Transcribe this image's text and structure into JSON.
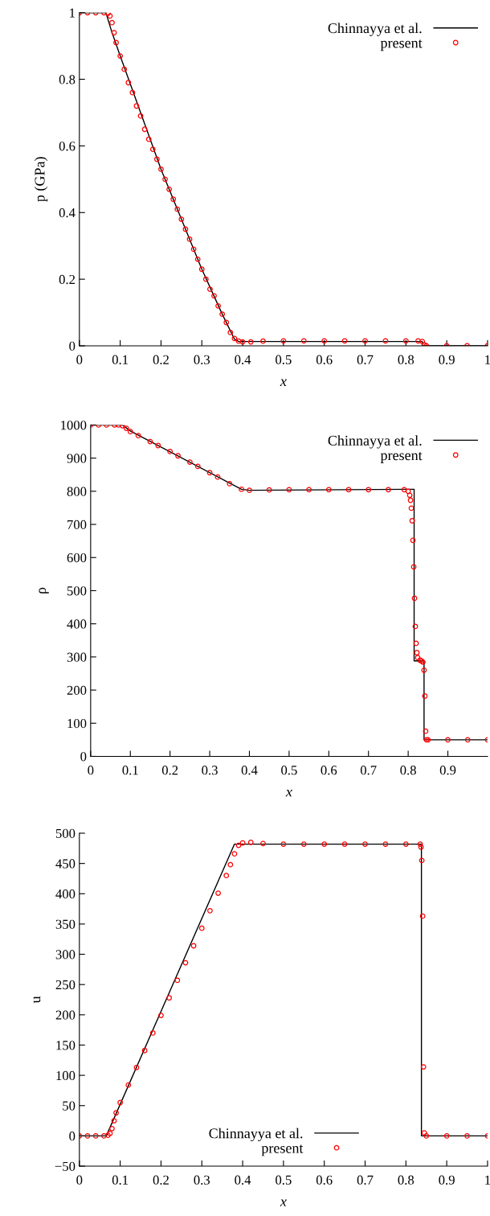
{
  "chart_data": [
    {
      "type": "line",
      "xlabel": "x",
      "ylabel": "p (GPa)",
      "xlim": [
        0,
        1
      ],
      "ylim": [
        0,
        1
      ],
      "xticks": [
        0,
        0.1,
        0.2,
        0.3,
        0.4,
        0.5,
        0.6,
        0.7,
        0.8,
        0.9,
        1
      ],
      "yticks": [
        0,
        0.2,
        0.4,
        0.6,
        0.8,
        1
      ],
      "legend": "top right",
      "grid": false,
      "series": [
        {
          "name": "Chinnayya et al.",
          "type": "line",
          "color": "#000000",
          "line_style": "solid",
          "x": [
            0,
            0.065,
            0.08,
            0.1,
            0.15,
            0.2,
            0.25,
            0.3,
            0.35,
            0.38,
            0.39,
            0.84,
            0.84,
            1
          ],
          "values": [
            1,
            1,
            0.94,
            0.87,
            0.7,
            0.53,
            0.38,
            0.23,
            0.095,
            0.02,
            0.013,
            0.013,
            0,
            0
          ]
        },
        {
          "name": "present",
          "type": "scatter",
          "color": "#ff0000",
          "marker": "circle",
          "x": [
            0,
            0.02,
            0.04,
            0.06,
            0.07,
            0.075,
            0.08,
            0.085,
            0.09,
            0.1,
            0.11,
            0.12,
            0.13,
            0.14,
            0.15,
            0.16,
            0.17,
            0.18,
            0.19,
            0.2,
            0.21,
            0.22,
            0.23,
            0.24,
            0.25,
            0.26,
            0.27,
            0.28,
            0.29,
            0.3,
            0.31,
            0.32,
            0.33,
            0.34,
            0.35,
            0.36,
            0.37,
            0.38,
            0.39,
            0.4,
            0.42,
            0.45,
            0.5,
            0.55,
            0.6,
            0.65,
            0.7,
            0.75,
            0.8,
            0.83,
            0.84,
            0.845,
            0.85,
            0.9,
            0.95,
            1
          ],
          "values": [
            1,
            1,
            1,
            1,
            0.998,
            0.99,
            0.97,
            0.94,
            0.91,
            0.87,
            0.83,
            0.79,
            0.76,
            0.72,
            0.69,
            0.65,
            0.62,
            0.59,
            0.56,
            0.53,
            0.5,
            0.47,
            0.44,
            0.41,
            0.38,
            0.35,
            0.32,
            0.29,
            0.26,
            0.23,
            0.2,
            0.17,
            0.15,
            0.12,
            0.095,
            0.07,
            0.04,
            0.022,
            0.014,
            0.012,
            0.012,
            0.014,
            0.015,
            0.015,
            0.015,
            0.015,
            0.015,
            0.015,
            0.015,
            0.015,
            0.013,
            0.003,
            0,
            0,
            0,
            0
          ]
        }
      ]
    },
    {
      "type": "line",
      "xlabel": "x",
      "ylabel": "ρ",
      "xlim": [
        0,
        1
      ],
      "ylim": [
        0,
        1000
      ],
      "xticks": [
        0,
        0.1,
        0.2,
        0.3,
        0.4,
        0.5,
        0.6,
        0.7,
        0.8,
        0.9
      ],
      "yticks": [
        0,
        100,
        200,
        300,
        400,
        500,
        600,
        700,
        800,
        900,
        1000
      ],
      "legend": "top right",
      "grid": false,
      "series": [
        {
          "name": "Chinnayya et al.",
          "type": "line",
          "color": "#000000",
          "line_style": "solid",
          "x": [
            0,
            0.08,
            0.1,
            0.38,
            0.4,
            0.815,
            0.815,
            0.84,
            0.84,
            1
          ],
          "values": [
            1000,
            1000,
            982,
            806,
            803,
            806,
            288,
            288,
            50,
            50
          ]
        },
        {
          "name": "present",
          "type": "scatter",
          "color": "#ff0000",
          "marker": "circle",
          "x": [
            0,
            0.02,
            0.04,
            0.06,
            0.07,
            0.08,
            0.09,
            0.1,
            0.12,
            0.15,
            0.17,
            0.2,
            0.22,
            0.25,
            0.27,
            0.3,
            0.32,
            0.35,
            0.38,
            0.4,
            0.45,
            0.5,
            0.55,
            0.6,
            0.65,
            0.7,
            0.75,
            0.79,
            0.8,
            0.804,
            0.806,
            0.808,
            0.81,
            0.812,
            0.814,
            0.816,
            0.818,
            0.82,
            0.822,
            0.824,
            0.83,
            0.834,
            0.837,
            0.84,
            0.842,
            0.844,
            0.846,
            0.85,
            0.9,
            0.95,
            1
          ],
          "values": [
            1000,
            1000,
            1000,
            1000,
            1000,
            998,
            990,
            980,
            968,
            950,
            938,
            920,
            907,
            888,
            875,
            856,
            843,
            823,
            806,
            803,
            804,
            805,
            805,
            805,
            805,
            805,
            805,
            805,
            800,
            788,
            773,
            749,
            711,
            652,
            572,
            477,
            392,
            341,
            313,
            298,
            290,
            288,
            284,
            260,
            182,
            76,
            50,
            50,
            50,
            50,
            50
          ]
        }
      ]
    },
    {
      "type": "line",
      "xlabel": "x",
      "ylabel": "u",
      "xlim": [
        0,
        1
      ],
      "ylim": [
        -50,
        500
      ],
      "xticks": [
        0,
        0.1,
        0.2,
        0.3,
        0.4,
        0.5,
        0.6,
        0.7,
        0.8,
        0.9,
        1
      ],
      "yticks": [
        {
          "value": -50,
          "label": "−50"
        },
        0,
        50,
        100,
        150,
        200,
        250,
        300,
        350,
        400,
        450,
        500
      ],
      "legend": "bottom",
      "grid": false,
      "series": [
        {
          "name": "Chinnayya et al.",
          "type": "line",
          "color": "#000000",
          "line_style": "solid",
          "x": [
            0,
            0.066,
            0.38,
            0.838,
            0.838,
            1
          ],
          "values": [
            0,
            0,
            482,
            482,
            0,
            0
          ]
        },
        {
          "name": "present",
          "type": "scatter",
          "color": "#ff0000",
          "marker": "circle",
          "x": [
            0,
            0.02,
            0.04,
            0.06,
            0.07,
            0.075,
            0.08,
            0.085,
            0.09,
            0.1,
            0.12,
            0.14,
            0.16,
            0.18,
            0.2,
            0.22,
            0.24,
            0.26,
            0.28,
            0.3,
            0.32,
            0.34,
            0.36,
            0.37,
            0.38,
            0.39,
            0.4,
            0.42,
            0.45,
            0.5,
            0.55,
            0.6,
            0.65,
            0.7,
            0.75,
            0.8,
            0.835,
            0.837,
            0.839,
            0.841,
            0.843,
            0.845,
            0.85,
            0.9,
            0.95,
            1
          ],
          "values": [
            0,
            0,
            0,
            0,
            1,
            4,
            12,
            25,
            38,
            55,
            84,
            113,
            141,
            170,
            199,
            228,
            257,
            286,
            314,
            343,
            372,
            401,
            430,
            448,
            466,
            480,
            484,
            485,
            483,
            482,
            482,
            482,
            482,
            482,
            482,
            482,
            482,
            477,
            455,
            363,
            114,
            5,
            0,
            0,
            0,
            0
          ]
        }
      ]
    }
  ]
}
